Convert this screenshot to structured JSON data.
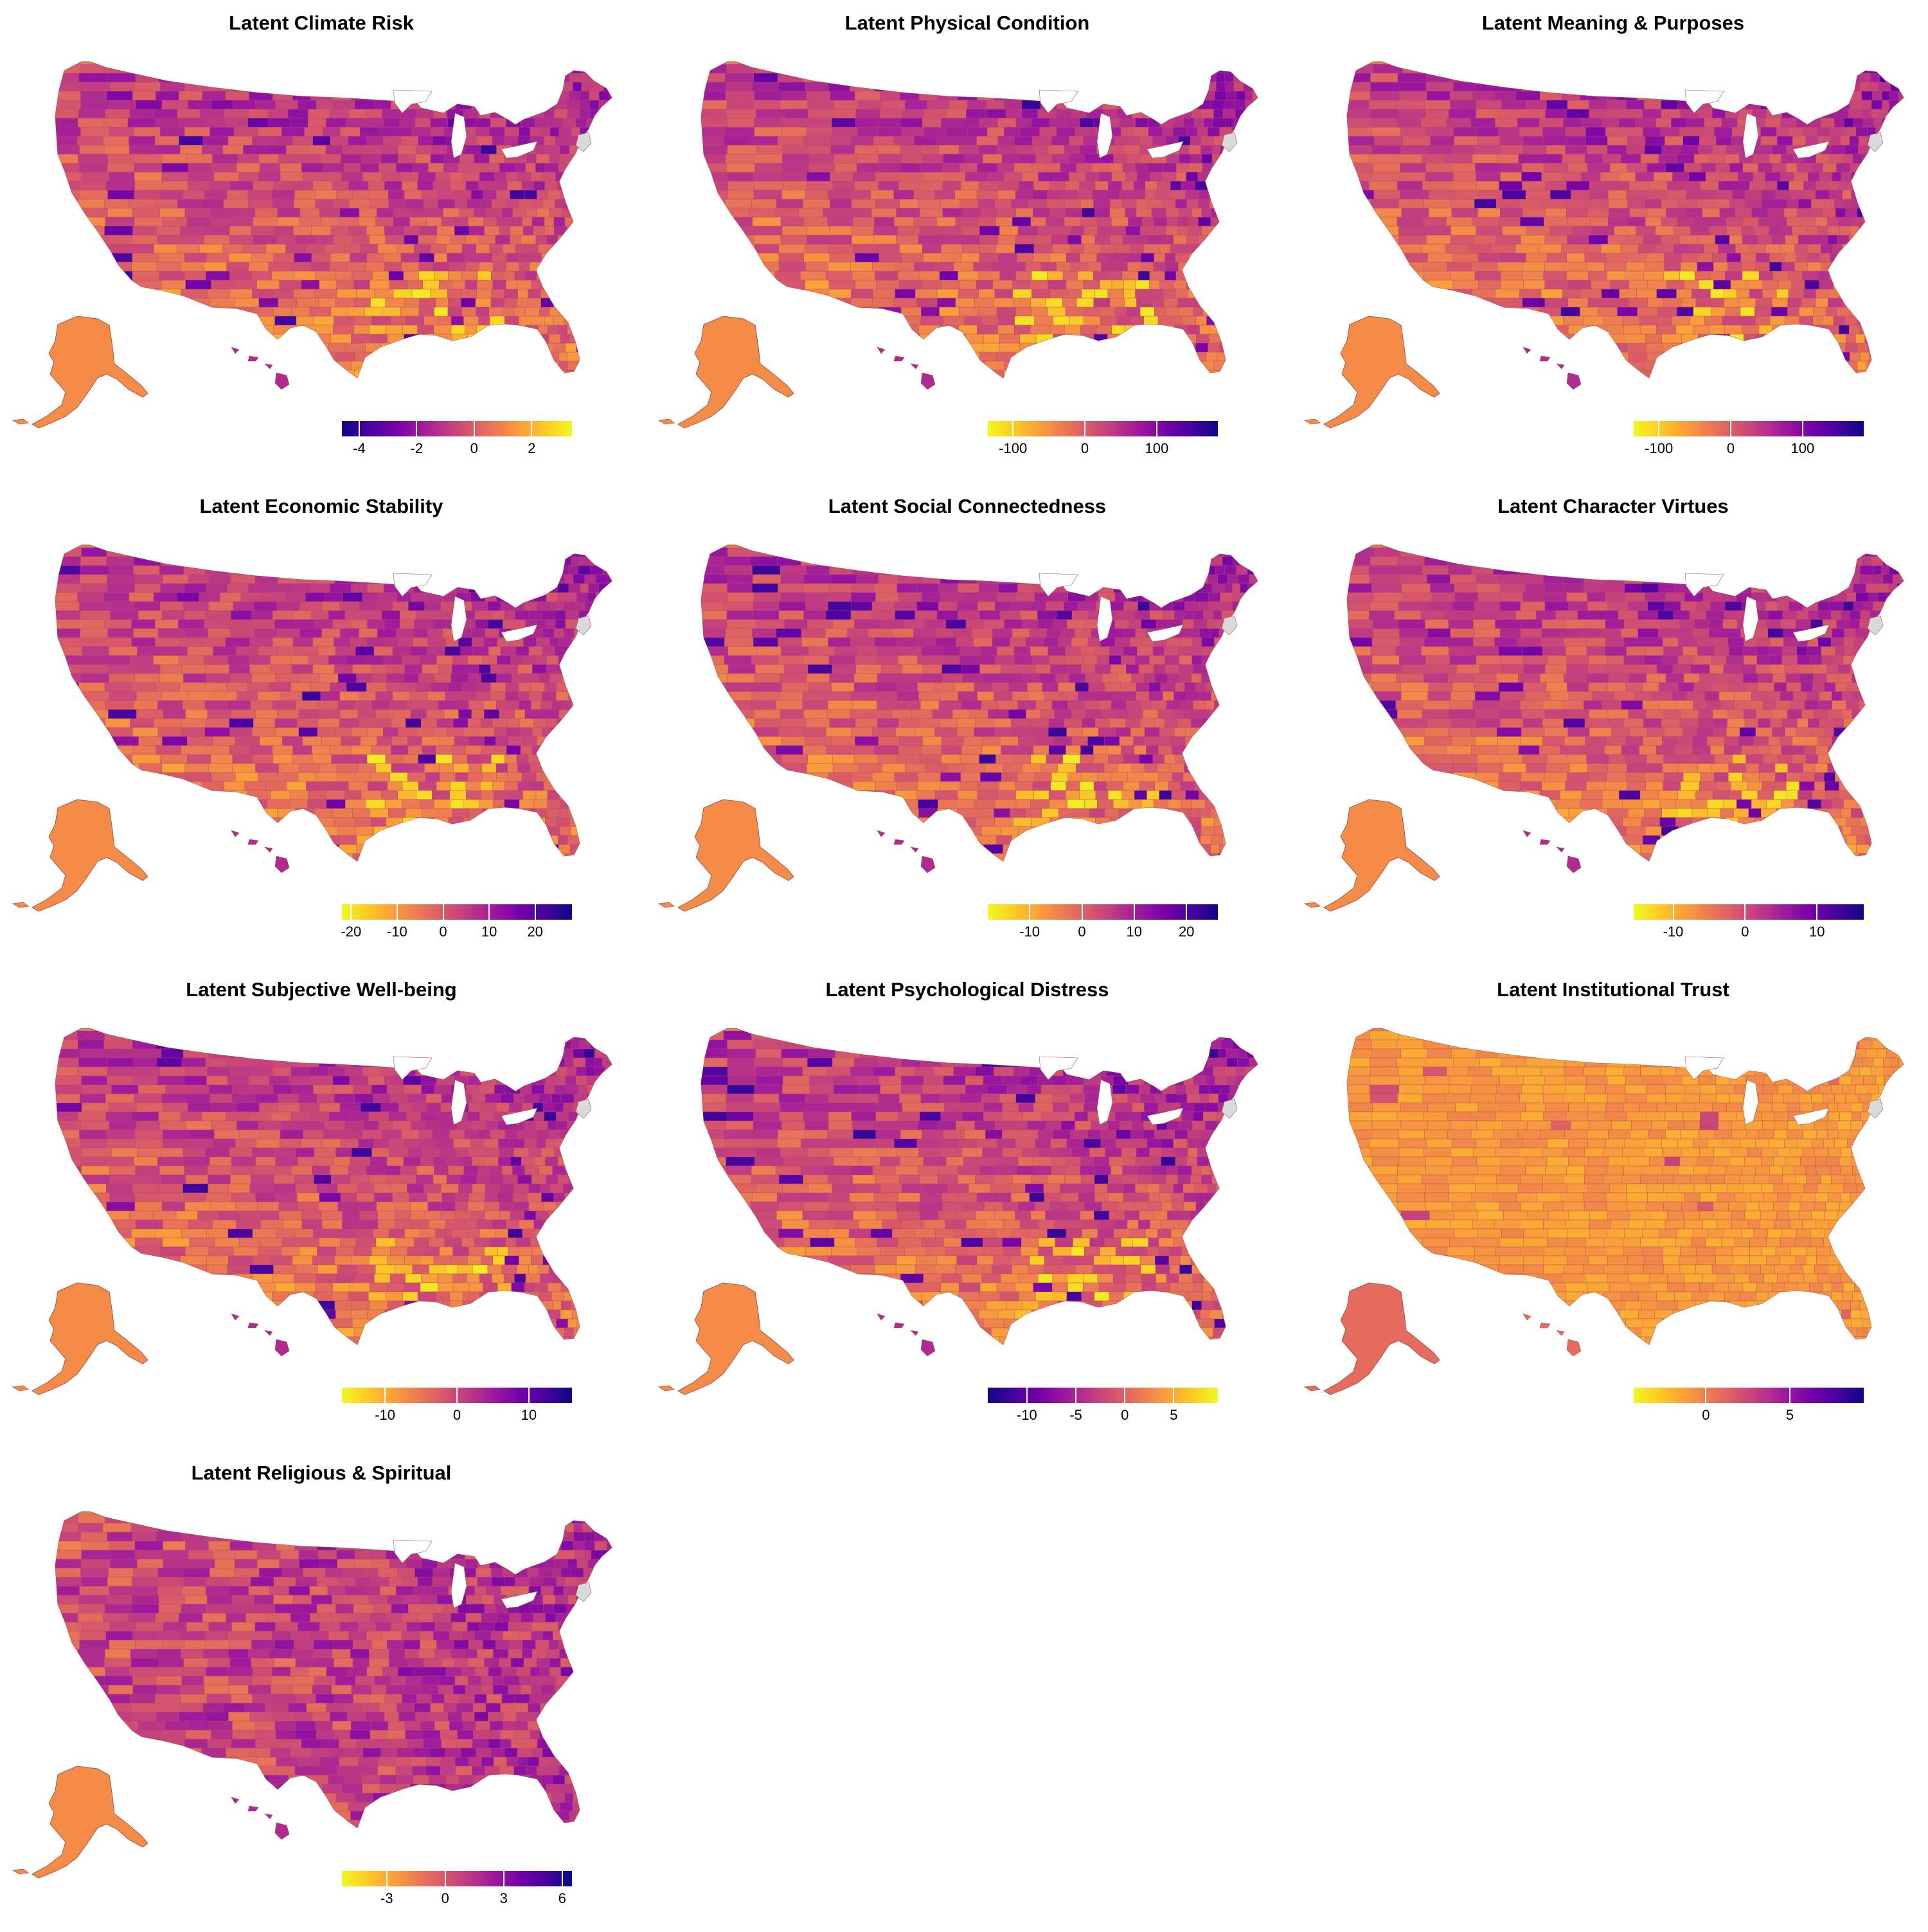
{
  "colors": {
    "plasma": [
      "#0d0887",
      "#46039f",
      "#7201a8",
      "#9c179e",
      "#bd3786",
      "#d8576b",
      "#ed7953",
      "#fb9f3a",
      "#fdca26",
      "#f0f921"
    ],
    "base_fill": "#e9804d",
    "county_line": "#9a5a5a",
    "lake_fill": "#ffffff",
    "missing_fill": "#d9d9d9"
  },
  "map_data": [
    {
      "title": "Latent Climate Risk",
      "scale_min": -4.6,
      "scale_max": 3.4,
      "palette_reversed": false,
      "ticks": [
        {
          "value": -4,
          "label": "-4"
        },
        {
          "value": -2,
          "label": "-2"
        },
        {
          "value": 0,
          "label": "0"
        },
        {
          "value": 2,
          "label": "2"
        }
      ]
    },
    {
      "title": "Latent Physical Condition",
      "scale_min": -135,
      "scale_max": 185,
      "palette_reversed": true,
      "ticks": [
        {
          "value": -100,
          "label": "-100"
        },
        {
          "value": 0,
          "label": "0"
        },
        {
          "value": 100,
          "label": "100"
        }
      ]
    },
    {
      "title": "Latent Meaning & Purposes",
      "scale_min": -135,
      "scale_max": 185,
      "palette_reversed": true,
      "ticks": [
        {
          "value": -100,
          "label": "-100"
        },
        {
          "value": 0,
          "label": "0"
        },
        {
          "value": 100,
          "label": "100"
        }
      ]
    },
    {
      "title": "Latent Economic Stability",
      "scale_min": -22,
      "scale_max": 28,
      "palette_reversed": true,
      "ticks": [
        {
          "value": -20,
          "label": "-20"
        },
        {
          "value": -10,
          "label": "-10"
        },
        {
          "value": 0,
          "label": "0"
        },
        {
          "value": 10,
          "label": "10"
        },
        {
          "value": 20,
          "label": "20"
        }
      ]
    },
    {
      "title": "Latent Social Connectedness",
      "scale_min": -18,
      "scale_max": 26,
      "palette_reversed": true,
      "ticks": [
        {
          "value": -10,
          "label": "-10"
        },
        {
          "value": 0,
          "label": "0"
        },
        {
          "value": 10,
          "label": "10"
        },
        {
          "value": 20,
          "label": "20"
        }
      ]
    },
    {
      "title": "Latent Character Virtues",
      "scale_min": -15.5,
      "scale_max": 16.5,
      "palette_reversed": true,
      "ticks": [
        {
          "value": -10,
          "label": "-10"
        },
        {
          "value": 0,
          "label": "0"
        },
        {
          "value": 10,
          "label": "10"
        }
      ]
    },
    {
      "title": "Latent Subjective Well-being",
      "scale_min": -16,
      "scale_max": 16,
      "palette_reversed": true,
      "ticks": [
        {
          "value": -10,
          "label": "-10"
        },
        {
          "value": 0,
          "label": "0"
        },
        {
          "value": 10,
          "label": "10"
        }
      ]
    },
    {
      "title": "Latent Psychological Distress",
      "scale_min": -14,
      "scale_max": 9.5,
      "palette_reversed": false,
      "ticks": [
        {
          "value": -10,
          "label": "-10"
        },
        {
          "value": -5,
          "label": "-5"
        },
        {
          "value": 0,
          "label": "0"
        },
        {
          "value": 5,
          "label": "5"
        }
      ]
    },
    {
      "title": "Latent Institutional Trust",
      "scale_min": -4.3,
      "scale_max": 9.4,
      "palette_reversed": true,
      "ticks": [
        {
          "value": 0,
          "label": "0"
        },
        {
          "value": 5,
          "label": "5"
        }
      ]
    },
    {
      "title": "Latent Religious & Spiritual",
      "scale_min": -5.3,
      "scale_max": 6.5,
      "palette_reversed": true,
      "ticks": [
        {
          "value": -3,
          "label": "-3"
        },
        {
          "value": 0,
          "label": "0"
        },
        {
          "value": 3,
          "label": "3"
        },
        {
          "value": 6,
          "label": "6"
        }
      ]
    }
  ]
}
